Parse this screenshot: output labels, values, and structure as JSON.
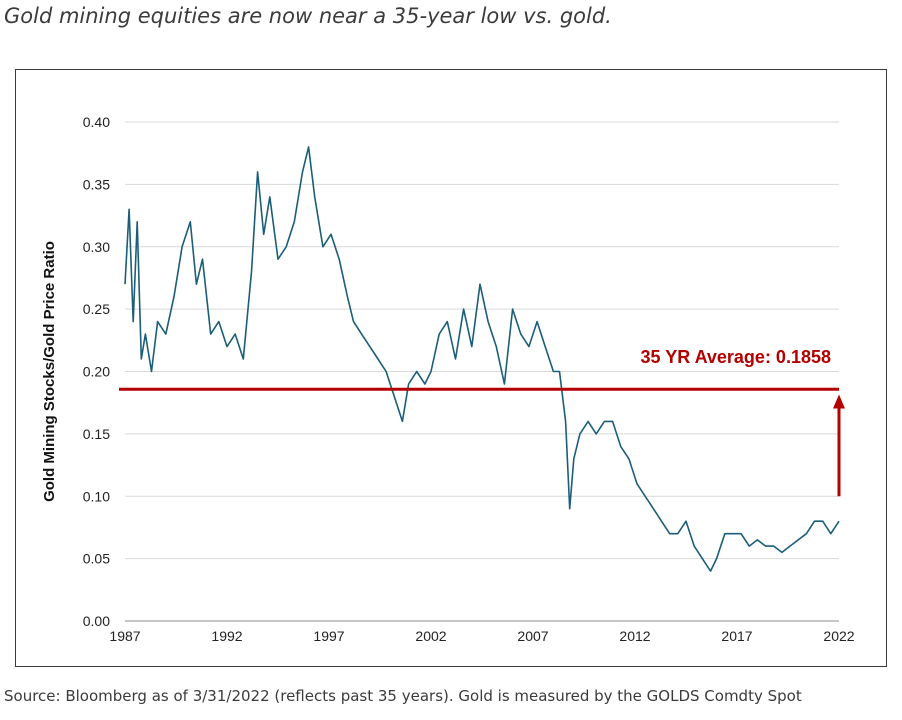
{
  "headline": "Gold mining equities are now near a 35-year low vs. gold.",
  "source_note": "Source: Bloomberg as of 3/31/2022 (reflects past 35 years). Gold is measured by the GOLDS Comdty Spot",
  "chart_data": {
    "type": "line",
    "title": "",
    "xlabel": "",
    "ylabel": "Gold Mining Stocks/Gold Price Ratio",
    "xlim": [
      1987,
      2022
    ],
    "ylim": [
      0,
      0.4
    ],
    "x_ticks": [
      "1987",
      "1992",
      "1997",
      "2002",
      "2007",
      "2012",
      "2017",
      "2022"
    ],
    "y_ticks": [
      "0.00",
      "0.05",
      "0.10",
      "0.15",
      "0.20",
      "0.25",
      "0.30",
      "0.35",
      "0.40"
    ],
    "grid": "horizontal",
    "series": [
      {
        "color": "#1b5e79",
        "x": [
          1987.0,
          1987.2,
          1987.4,
          1987.6,
          1987.8,
          1988.0,
          1988.3,
          1988.6,
          1989.0,
          1989.4,
          1989.8,
          1990.2,
          1990.5,
          1990.8,
          1991.2,
          1991.6,
          1992.0,
          1992.4,
          1992.8,
          1993.2,
          1993.5,
          1993.8,
          1994.1,
          1994.5,
          1994.9,
          1995.3,
          1995.7,
          1996.0,
          1996.3,
          1996.7,
          1997.1,
          1997.5,
          1997.9,
          1998.2,
          1998.6,
          1999.0,
          1999.4,
          1999.8,
          2000.2,
          2000.6,
          2000.9,
          2001.3,
          2001.7,
          2002.0,
          2002.4,
          2002.8,
          2003.2,
          2003.6,
          2004.0,
          2004.4,
          2004.8,
          2005.2,
          2005.6,
          2006.0,
          2006.4,
          2006.8,
          2007.2,
          2007.6,
          2008.0,
          2008.3,
          2008.6,
          2008.8,
          2009.0,
          2009.3,
          2009.7,
          2010.1,
          2010.5,
          2010.9,
          2011.3,
          2011.7,
          2012.1,
          2012.5,
          2012.9,
          2013.3,
          2013.7,
          2014.1,
          2014.5,
          2014.9,
          2015.3,
          2015.7,
          2016.0,
          2016.4,
          2016.8,
          2017.2,
          2017.6,
          2018.0,
          2018.4,
          2018.8,
          2019.2,
          2019.6,
          2020.0,
          2020.4,
          2020.8,
          2021.2,
          2021.6,
          2022.0
        ],
        "values": [
          0.27,
          0.33,
          0.24,
          0.32,
          0.21,
          0.23,
          0.2,
          0.24,
          0.23,
          0.26,
          0.3,
          0.32,
          0.27,
          0.29,
          0.23,
          0.24,
          0.22,
          0.23,
          0.21,
          0.28,
          0.36,
          0.31,
          0.34,
          0.29,
          0.3,
          0.32,
          0.36,
          0.38,
          0.34,
          0.3,
          0.31,
          0.29,
          0.26,
          0.24,
          0.23,
          0.22,
          0.21,
          0.2,
          0.18,
          0.16,
          0.19,
          0.2,
          0.19,
          0.2,
          0.23,
          0.24,
          0.21,
          0.25,
          0.22,
          0.27,
          0.24,
          0.22,
          0.19,
          0.25,
          0.23,
          0.22,
          0.24,
          0.22,
          0.2,
          0.2,
          0.16,
          0.09,
          0.13,
          0.15,
          0.16,
          0.15,
          0.16,
          0.16,
          0.14,
          0.13,
          0.11,
          0.1,
          0.09,
          0.08,
          0.07,
          0.07,
          0.08,
          0.06,
          0.05,
          0.04,
          0.05,
          0.07,
          0.07,
          0.07,
          0.06,
          0.065,
          0.06,
          0.06,
          0.055,
          0.06,
          0.065,
          0.07,
          0.08,
          0.08,
          0.07,
          0.08
        ]
      }
    ],
    "reference_line": {
      "value": 0.1858,
      "label": "35 YR Average: 0.1858",
      "color": "#b30000"
    },
    "arrow": {
      "x": 2022,
      "from": 0.1,
      "to": 0.18,
      "color": "#b30000"
    }
  }
}
